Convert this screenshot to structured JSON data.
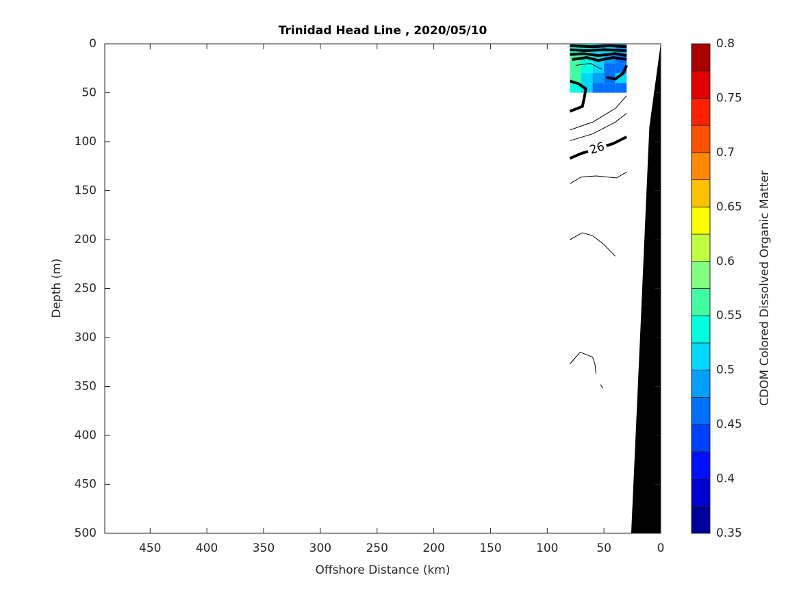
{
  "chart_data": {
    "type": "contour",
    "title": "Trinidad Head Line , 2020/05/10",
    "x_label": "Offshore Distance (km)",
    "y_label": "Depth (m)",
    "colorbar_label": "CDOM Colored Dissolved Organic Matter",
    "xlim": [
      0,
      490
    ],
    "xreverse": true,
    "xticks": [
      0,
      50,
      100,
      150,
      200,
      250,
      300,
      350,
      400,
      450
    ],
    "ylim": [
      0,
      500
    ],
    "yreverse": true,
    "yticks": [
      0,
      50,
      100,
      150,
      200,
      250,
      300,
      350,
      400,
      450,
      500
    ],
    "clim": [
      0.35,
      0.8
    ],
    "cticks": [
      0.35,
      0.4,
      0.45,
      0.5,
      0.55,
      0.6,
      0.65,
      0.7,
      0.75,
      0.8
    ],
    "colormap": [
      "#00009a",
      "#0000d0",
      "#0010ff",
      "#0040ff",
      "#0070ff",
      "#00a0ff",
      "#00d8ff",
      "#00ffe0",
      "#40ffa0",
      "#80ff80",
      "#c0ff40",
      "#ffff00",
      "#ffc000",
      "#ff8800",
      "#ff5000",
      "#ff2000",
      "#e00000",
      "#aa0000"
    ],
    "field": {
      "x": [
        80,
        70,
        60,
        50,
        40,
        30
      ],
      "depth": [
        0,
        10,
        20,
        30,
        40,
        50
      ],
      "values": [
        [
          0.53,
          0.54,
          0.52,
          0.5,
          0.48
        ],
        [
          0.55,
          0.53,
          0.51,
          0.49,
          0.47
        ],
        [
          0.56,
          0.54,
          0.5,
          0.47,
          0.46
        ],
        [
          0.55,
          0.52,
          0.49,
          0.47,
          0.5
        ],
        [
          0.53,
          0.51,
          0.47,
          0.45,
          0.47
        ]
      ]
    },
    "contours": [
      {
        "bold": true,
        "x": [
          80,
          60,
          45,
          30
        ],
        "depth": [
          2,
          3,
          2,
          3
        ]
      },
      {
        "bold": true,
        "x": [
          80,
          65,
          50,
          30
        ],
        "depth": [
          6,
          7,
          6,
          7
        ]
      },
      {
        "bold": true,
        "x": [
          80,
          68,
          55,
          40,
          30
        ],
        "depth": [
          11,
          10,
          12,
          10,
          12
        ]
      },
      {
        "bold": true,
        "x": [
          78,
          65,
          55,
          42,
          30
        ],
        "depth": [
          16,
          14,
          17,
          14,
          16
        ]
      },
      {
        "bold": false,
        "x": [
          75,
          62,
          52
        ],
        "depth": [
          22,
          20,
          26
        ]
      },
      {
        "bold": true,
        "x": [
          48,
          40,
          33,
          30
        ],
        "depth": [
          34,
          36,
          30,
          22
        ]
      },
      {
        "bold": true,
        "x": [
          80,
          69,
          67,
          66,
          72,
          80
        ],
        "depth": [
          69,
          64,
          53,
          46,
          41,
          38
        ]
      },
      {
        "bold": false,
        "x": [
          80,
          60,
          40,
          30
        ],
        "depth": [
          88,
          80,
          66,
          53
        ]
      },
      {
        "bold": false,
        "x": [
          80,
          60,
          40,
          30
        ],
        "depth": [
          99,
          92,
          80,
          71
        ]
      },
      {
        "bold": true,
        "level": 26,
        "x": [
          80,
          70,
          42,
          30
        ],
        "depth": [
          117,
          112,
          102,
          95
        ]
      },
      {
        "bold": false,
        "x": [
          80,
          70,
          57,
          39,
          30
        ],
        "depth": [
          143,
          136,
          135,
          137,
          131
        ]
      },
      {
        "bold": false,
        "x": [
          80,
          69,
          60,
          50,
          40
        ],
        "depth": [
          200,
          193,
          196,
          205,
          217
        ]
      },
      {
        "bold": false,
        "x": [
          80,
          71,
          60,
          58,
          57
        ],
        "depth": [
          327,
          315,
          320,
          327,
          337
        ]
      },
      {
        "bold": false,
        "x": [
          53,
          51
        ],
        "depth": [
          348,
          352
        ]
      }
    ],
    "bottom": {
      "x": [
        0,
        10,
        18,
        26
      ],
      "depth": [
        0,
        85,
        295,
        500
      ],
      "color": "#000000"
    }
  }
}
